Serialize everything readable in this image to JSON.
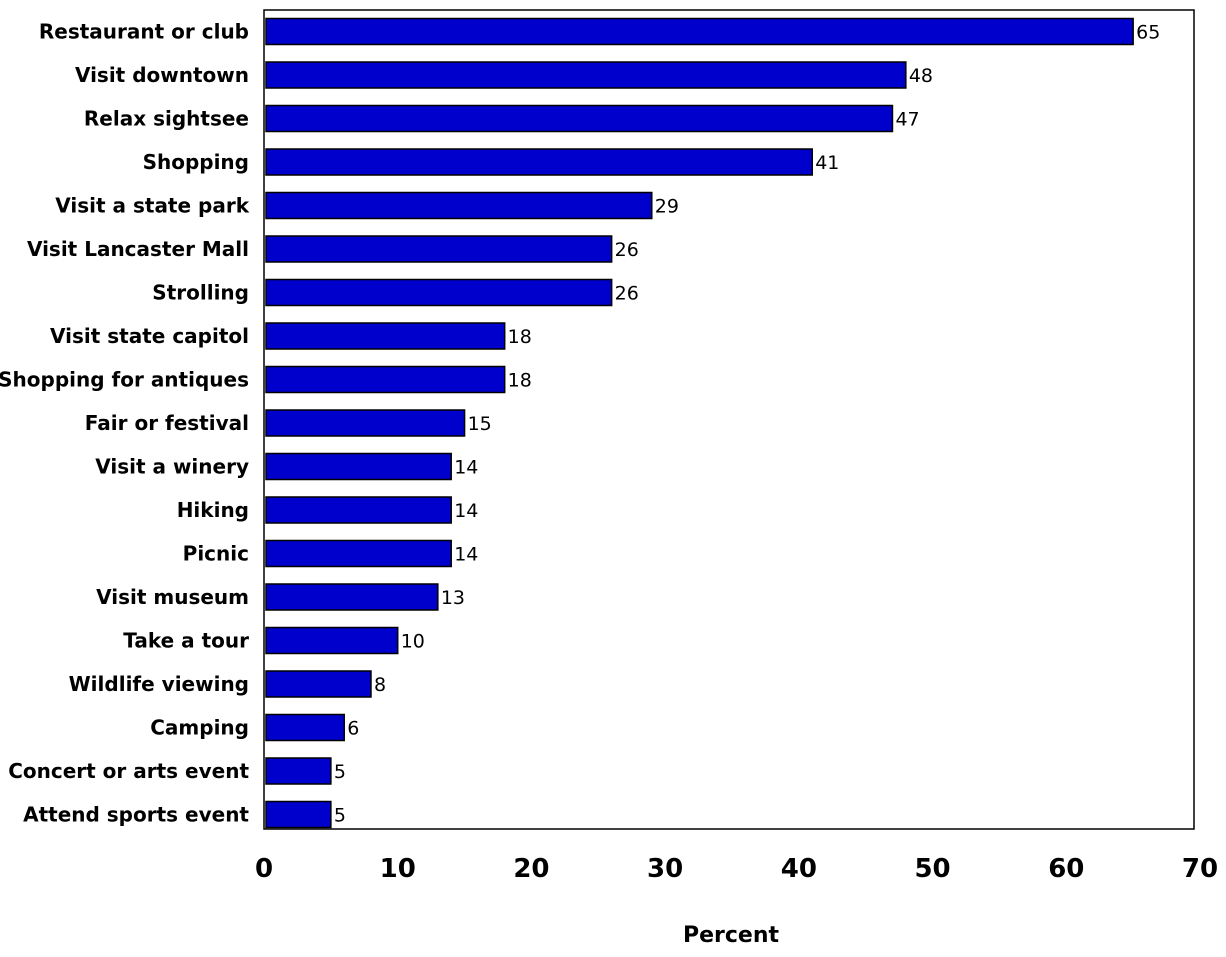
{
  "chart_data": {
    "type": "bar",
    "orientation": "horizontal",
    "categories": [
      "Restaurant or club",
      "Visit downtown",
      "Relax sightsee",
      "Shopping",
      "Visit a state park",
      "Visit Lancaster Mall",
      "Strolling",
      "Visit state capitol",
      "Shopping for antiques",
      "Fair or festival",
      "Visit a winery",
      "Hiking",
      "Picnic",
      "Visit museum",
      "Take a tour",
      "Wildlife viewing",
      "Camping",
      "Concert or arts event",
      "Attend sports event"
    ],
    "values": [
      65,
      48,
      47,
      41,
      29,
      26,
      26,
      18,
      18,
      15,
      14,
      14,
      14,
      13,
      10,
      8,
      6,
      5,
      5
    ],
    "value_labels": [
      "65",
      "48",
      "47",
      "41",
      "29",
      "26",
      "26",
      "18",
      "18",
      "15",
      "14",
      "14",
      "14",
      "13",
      "10",
      "8",
      "6",
      "5",
      "5"
    ],
    "xlabel": "Percent",
    "ylabel": "",
    "title": "",
    "xlim": [
      0,
      70
    ],
    "x_ticks": [
      0,
      10,
      20,
      30,
      40,
      50,
      60,
      70
    ],
    "x_tick_labels": [
      "0",
      "10",
      "20",
      "30",
      "40",
      "50",
      "60",
      "70"
    ],
    "grid": false,
    "legend": "none",
    "bar_color": "#0000cc",
    "bar_edge_color": "#000000"
  }
}
